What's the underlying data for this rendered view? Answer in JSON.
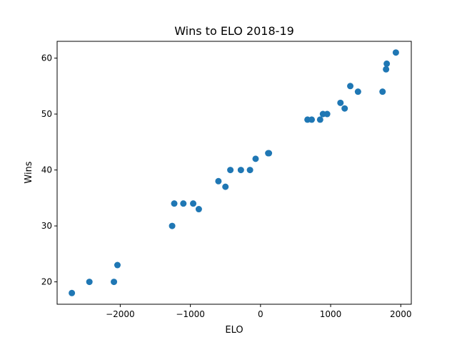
{
  "chart_data": {
    "type": "scatter",
    "title": "Wins to ELO 2018-19",
    "xlabel": "ELO",
    "ylabel": "Wins",
    "xlim": [
      -2900,
      2150
    ],
    "ylim": [
      16,
      63
    ],
    "xticks": [
      {
        "value": -2000,
        "label": "−2000"
      },
      {
        "value": -1000,
        "label": "−1000"
      },
      {
        "value": 0,
        "label": "0"
      },
      {
        "value": 1000,
        "label": "1000"
      },
      {
        "value": 2000,
        "label": "2000"
      }
    ],
    "yticks": [
      {
        "value": 20,
        "label": "20"
      },
      {
        "value": 30,
        "label": "30"
      },
      {
        "value": 40,
        "label": "40"
      },
      {
        "value": 50,
        "label": "50"
      },
      {
        "value": 60,
        "label": "60"
      }
    ],
    "grid": false,
    "color": "#1f77b4",
    "points": [
      {
        "x": -2690,
        "y": 18
      },
      {
        "x": -2440,
        "y": 20
      },
      {
        "x": -2090,
        "y": 20
      },
      {
        "x": -2040,
        "y": 23
      },
      {
        "x": -1260,
        "y": 30
      },
      {
        "x": -1230,
        "y": 34
      },
      {
        "x": -1100,
        "y": 34
      },
      {
        "x": -960,
        "y": 34
      },
      {
        "x": -880,
        "y": 33
      },
      {
        "x": -600,
        "y": 38
      },
      {
        "x": -500,
        "y": 37
      },
      {
        "x": -430,
        "y": 40
      },
      {
        "x": -280,
        "y": 40
      },
      {
        "x": -150,
        "y": 40
      },
      {
        "x": -70,
        "y": 42
      },
      {
        "x": 110,
        "y": 43
      },
      {
        "x": 120,
        "y": 43
      },
      {
        "x": 670,
        "y": 49
      },
      {
        "x": 730,
        "y": 49
      },
      {
        "x": 850,
        "y": 49
      },
      {
        "x": 890,
        "y": 50
      },
      {
        "x": 950,
        "y": 50
      },
      {
        "x": 1140,
        "y": 52
      },
      {
        "x": 1200,
        "y": 51
      },
      {
        "x": 1280,
        "y": 55
      },
      {
        "x": 1390,
        "y": 54
      },
      {
        "x": 1740,
        "y": 54
      },
      {
        "x": 1790,
        "y": 58
      },
      {
        "x": 1800,
        "y": 59
      },
      {
        "x": 1930,
        "y": 61
      }
    ]
  }
}
